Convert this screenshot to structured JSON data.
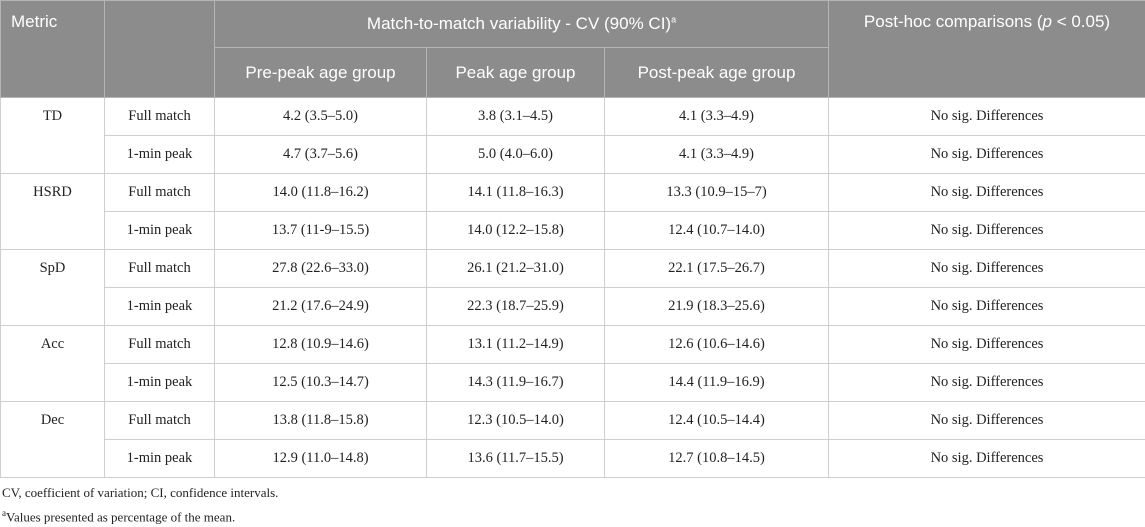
{
  "header": {
    "metric": "Metric",
    "group": "Match-to-match variability - CV (90% CI)",
    "group_sup": "a",
    "posthoc": {
      "before": "Post-hoc comparisons (",
      "italic": "p",
      "after": " < 0.05)"
    },
    "columns": [
      "Pre-peak age group",
      "Peak age group",
      "Post-peak age group"
    ]
  },
  "groups": [
    {
      "metric": "TD",
      "rows": [
        [
          "Full match",
          "4.2 (3.5–5.0)",
          "3.8 (3.1–4.5)",
          "4.1 (3.3–4.9)",
          "No sig. Differences"
        ],
        [
          "1-min peak",
          "4.7 (3.7–5.6)",
          "5.0 (4.0–6.0)",
          "4.1 (3.3–4.9)",
          "No sig. Differences"
        ]
      ]
    },
    {
      "metric": "HSRD",
      "rows": [
        [
          "Full match",
          "14.0 (11.8–16.2)",
          "14.1 (11.8–16.3)",
          "13.3 (10.9–15–7)",
          "No sig. Differences"
        ],
        [
          "1-min peak",
          "13.7 (11-9–15.5)",
          "14.0 (12.2–15.8)",
          "12.4 (10.7–14.0)",
          "No sig. Differences"
        ]
      ]
    },
    {
      "metric": "SpD",
      "rows": [
        [
          "Full match",
          "27.8 (22.6–33.0)",
          "26.1 (21.2–31.0)",
          "22.1 (17.5–26.7)",
          "No sig. Differences"
        ],
        [
          "1-min peak",
          "21.2 (17.6–24.9)",
          "22.3 (18.7–25.9)",
          "21.9 (18.3–25.6)",
          "No sig. Differences"
        ]
      ]
    },
    {
      "metric": "Acc",
      "rows": [
        [
          "Full match",
          "12.8 (10.9–14.6)",
          "13.1 (11.2–14.9)",
          "12.6 (10.6–14.6)",
          "No sig. Differences"
        ],
        [
          "1-min peak",
          "12.5 (10.3–14.7)",
          "14.3 (11.9–16.7)",
          "14.4 (11.9–16.9)",
          "No sig. Differences"
        ]
      ]
    },
    {
      "metric": "Dec",
      "rows": [
        [
          "Full match",
          "13.8 (11.8–15.8)",
          "12.3 (10.5–14.0)",
          "12.4 (10.5–14.4)",
          "No sig. Differences"
        ],
        [
          "1-min peak",
          "12.9 (11.0–14.8)",
          "13.6 (11.7–15.5)",
          "12.7 (10.8–14.5)",
          "No sig. Differences"
        ]
      ]
    }
  ],
  "footnotes": {
    "first": "CV, coefficient of variation; CI, confidence intervals.",
    "second_sup": "a",
    "second": "Values presented as percentage of the mean."
  }
}
